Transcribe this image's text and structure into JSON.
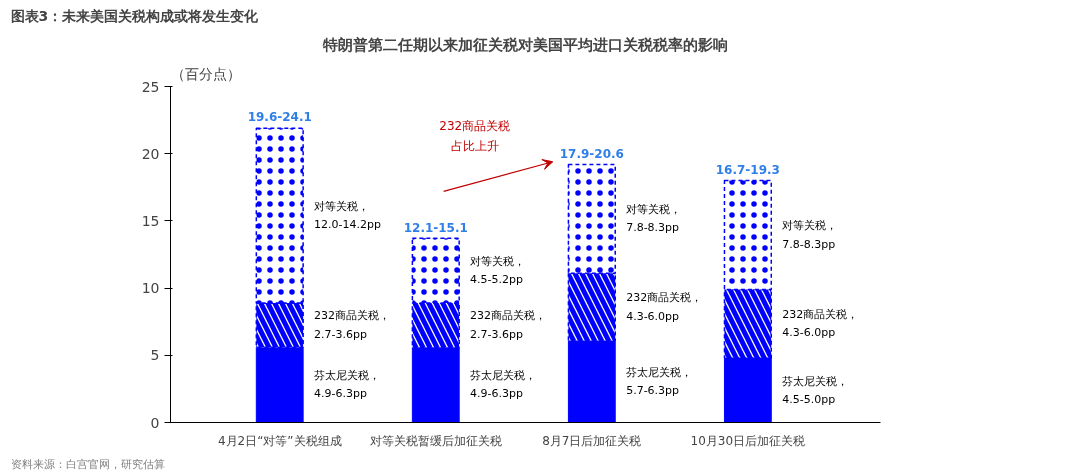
{
  "chart_data": {
    "type": "bar",
    "stacked": true,
    "title": "图表3：未来美国关税构成或将发生变化",
    "subtitle": "特朗普第二任期以来加征关税对美国平均进口关税税率的影响",
    "ylabel": "（百分点）",
    "categories": [
      "4月2日“对等”关税组成",
      "对等关税暂缓后加征关税",
      "8月7日后加征关税",
      "10月30日后加征关税"
    ],
    "series": [
      {
        "color": "#0000ff",
        "values": [
          5.6,
          5.6,
          6.1,
          4.8
        ]
      },
      {
        "color": "#0000ff",
        "values": [
          3.3,
          3.3,
          5.0,
          5.1
        ]
      },
      {
        "color": "#0000ff",
        "values": [
          13.0,
          4.8,
          8.1,
          8.1
        ]
      }
    ],
    "totals": [
      "19.6-24.1",
      "12.1-15.1",
      "17.9-20.6",
      "16.7-19.3"
    ],
    "ylim": [
      0,
      25
    ],
    "yticks": [
      0,
      5,
      10,
      15,
      20,
      25
    ],
    "grid": false,
    "annotations": [
      "对等关税，12.0-14.2pp",
      "232商品关税，2.7-3.6pp",
      "芬太尼关税，4.9-6.3pp",
      "对等关税，4.5-5.2pp",
      "232商品关税，2.7-3.6pp",
      "芬太尼关税，4.9-6.3pp",
      "对等关税，7.8-8.3pp",
      "232商品关税，4.3-6.0pp",
      "芬太尼关税，5.7-6.3pp",
      "对等关税，7.8-8.3pp",
      "232商品关税，4.3-6.0pp",
      "芬太尼关税，4.5-5.0pp",
      "232商品关税占比上升",
      "资料来源：白宫官网，研究估算"
    ]
  }
}
